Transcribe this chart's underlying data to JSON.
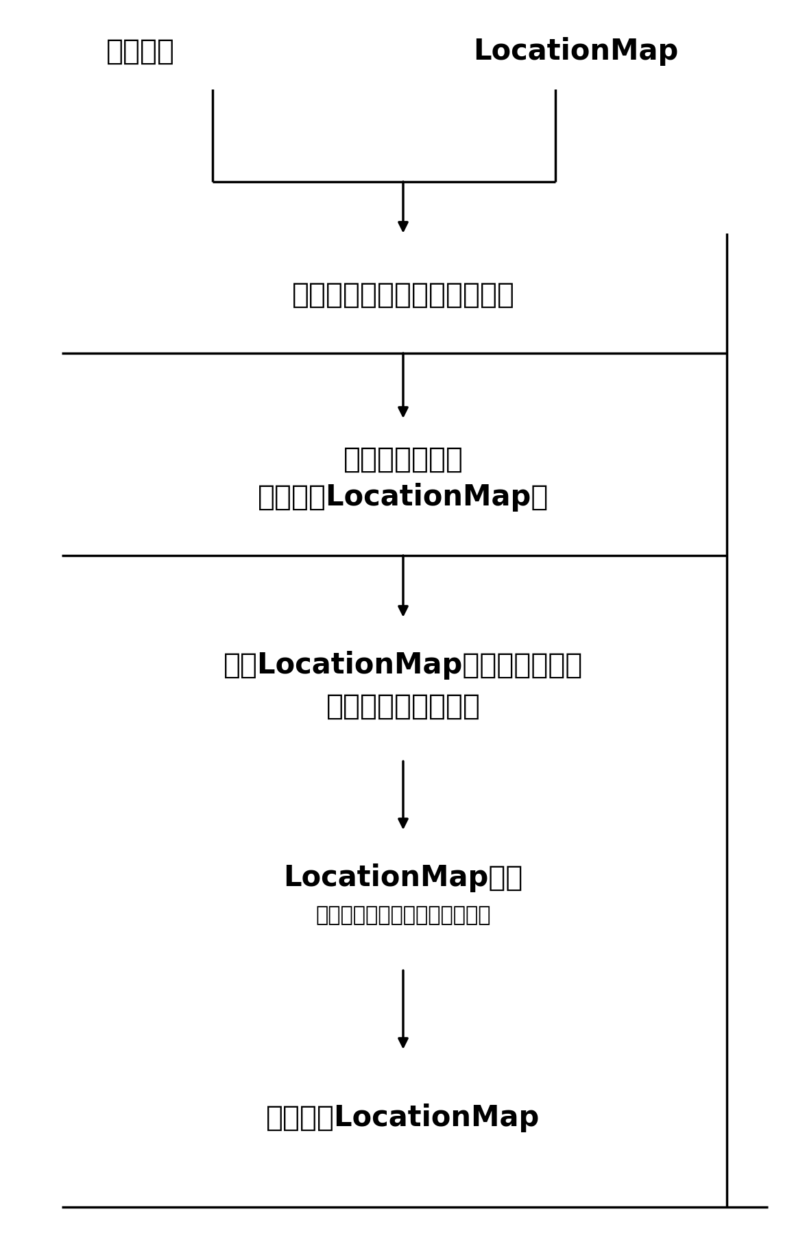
{
  "bg_color": "#ffffff",
  "line_color": "#000000",
  "text_color": "#000000",
  "label_left": "相机信号",
  "label_right": "LocationMap",
  "box1_text": "识别相机数据中的停车位编号",
  "box2_line1": "对比停车位编号",
  "box2_line2": "（相机和LocationMap）",
  "box3_line1": "锁定LocationMap中自车周边停车",
  "box3_line2": "位（包括层级信息）",
  "box4_line1": "LocationMap去噪",
  "box4_line2": "（对标锁定的停车位层级信息）",
  "box5_text": "去噪后的LocationMap",
  "font_size_large": 30,
  "font_size_medium": 22,
  "font_size_small": 18,
  "lw": 2.5
}
